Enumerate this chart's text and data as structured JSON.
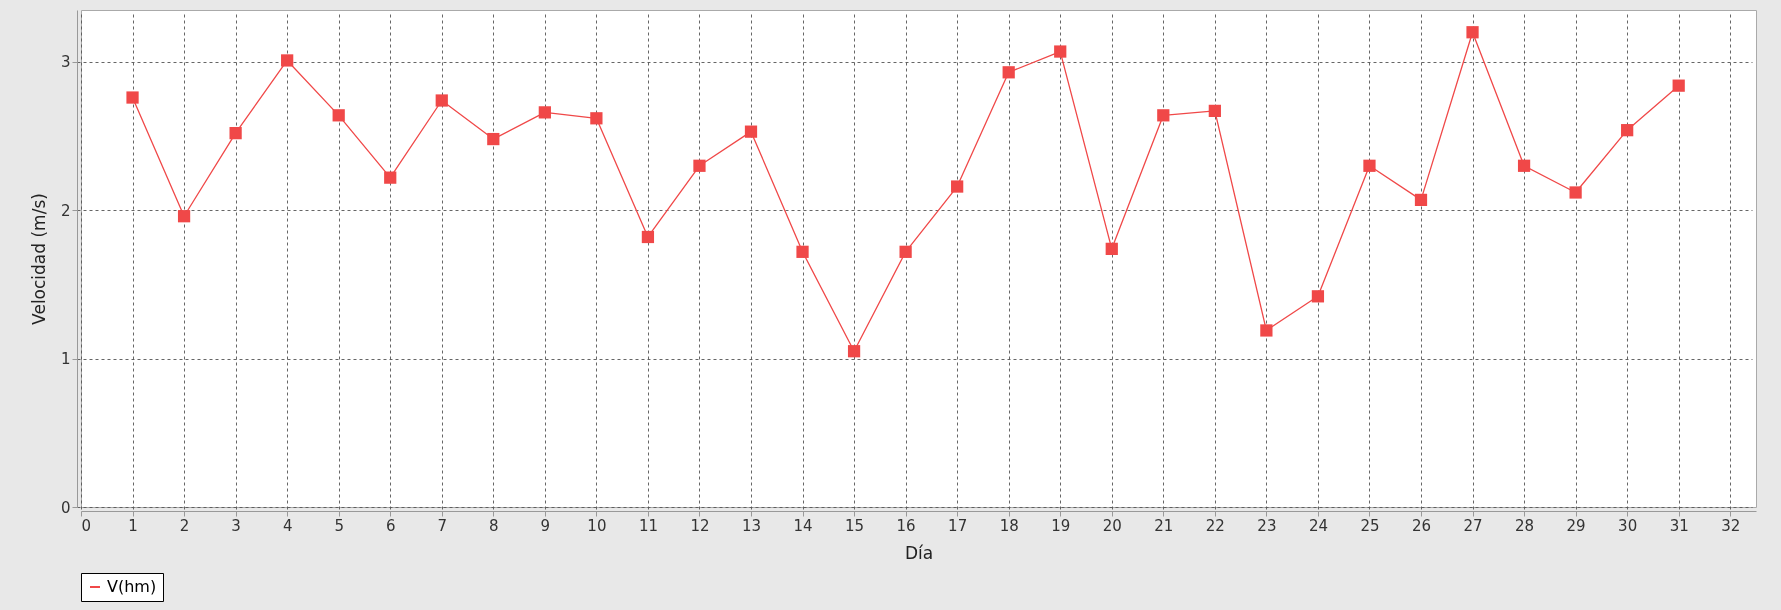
{
  "chart_data": {
    "type": "line",
    "xlabel": "Día",
    "ylabel": "Velocidad (m/s)",
    "x": [
      1,
      2,
      3,
      4,
      5,
      6,
      7,
      8,
      9,
      10,
      11,
      12,
      13,
      14,
      15,
      16,
      17,
      18,
      19,
      20,
      21,
      22,
      23,
      24,
      25,
      26,
      27,
      28,
      29,
      30,
      31
    ],
    "series": [
      {
        "name": "V(hm)",
        "color": "#f04848",
        "values": [
          2.76,
          1.96,
          2.52,
          3.01,
          2.64,
          2.22,
          2.74,
          2.48,
          2.66,
          2.62,
          1.82,
          2.3,
          2.53,
          1.72,
          1.05,
          1.72,
          2.16,
          2.93,
          3.07,
          1.74,
          2.64,
          2.67,
          1.19,
          1.42,
          2.3,
          2.07,
          3.2,
          2.3,
          2.12,
          2.54,
          2.84
        ]
      }
    ],
    "xlim": [
      0,
      32.5
    ],
    "xticks": [
      0,
      1,
      2,
      3,
      4,
      5,
      6,
      7,
      8,
      9,
      10,
      11,
      12,
      13,
      14,
      15,
      16,
      17,
      18,
      19,
      20,
      21,
      22,
      23,
      24,
      25,
      26,
      27,
      28,
      29,
      30,
      31,
      32
    ],
    "ylim": [
      0,
      3.35
    ],
    "yticks": [
      0,
      1,
      2,
      3
    ],
    "grid": true,
    "legend": "bottom",
    "marker": "square",
    "line_style": "solid"
  }
}
